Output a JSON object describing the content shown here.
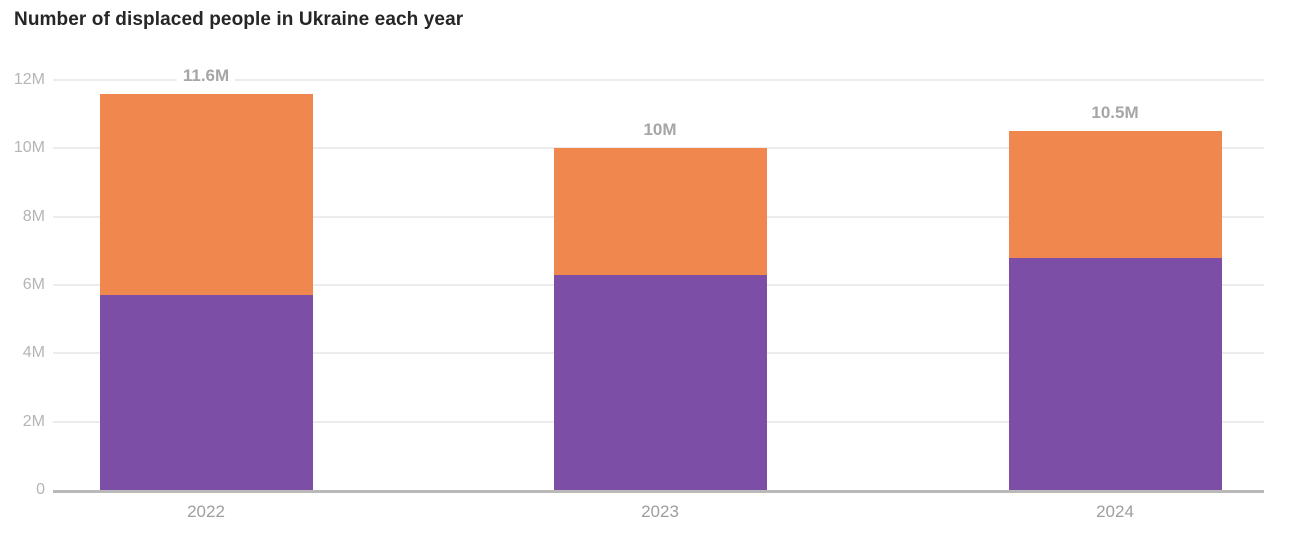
{
  "title": "Number of displaced people in Ukraine each year",
  "colors": {
    "bar_bottom": "#7C4EA5",
    "bar_top": "#F0874F",
    "gridline": "#ececec",
    "axis_line": "#b9b9b9",
    "tick_label": "#b5b5b5",
    "total_label": "#a6a6a6",
    "title_text": "#262626"
  },
  "chart_data": {
    "type": "bar",
    "stacked": true,
    "title": "Number of displaced people in Ukraine each year",
    "xlabel": "",
    "ylabel": "",
    "unit": "millions of people",
    "categories": [
      "2022",
      "2023",
      "2024"
    ],
    "series": [
      {
        "name": "purple-segment",
        "color": "#7C4EA5",
        "values": [
          5.7,
          6.3,
          6.8
        ]
      },
      {
        "name": "orange-segment",
        "color": "#F0874F",
        "values": [
          5.9,
          3.7,
          3.7
        ]
      }
    ],
    "totals": [
      11.6,
      10.0,
      10.5
    ],
    "total_labels": [
      "11.6M",
      "10M",
      "10.5M"
    ],
    "ylim": [
      0,
      12
    ],
    "yticks": [
      0,
      2,
      4,
      6,
      8,
      10,
      12
    ],
    "ytick_labels": [
      "0",
      "2M",
      "4M",
      "6M",
      "8M",
      "10M",
      "12M"
    ],
    "grid": true,
    "legend": "none"
  }
}
